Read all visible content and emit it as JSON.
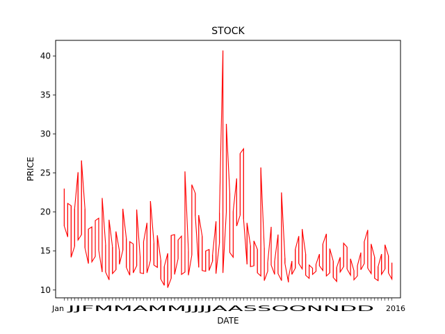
{
  "chart_data": {
    "type": "line",
    "title": "STOCK",
    "xlabel": "DATE",
    "ylabel": "PRICE",
    "xtick_first": "Jan",
    "xtick_last": "2016",
    "xtick_overlap_text": "JJFMMAMMJJJJAASSOONNDD",
    "ylim": [
      9,
      42
    ],
    "yticks": [
      10,
      15,
      20,
      25,
      30,
      35,
      40
    ],
    "xlim": [
      -2.5,
      97.5
    ],
    "n_points": 96,
    "series": [
      {
        "name": "",
        "color": "#ff0000",
        "x": [
          0,
          1,
          2,
          3,
          4,
          5,
          6,
          7,
          8,
          9,
          10,
          11,
          12,
          13,
          14,
          15,
          16,
          17,
          18,
          19,
          20,
          21,
          22,
          23,
          24,
          25,
          26,
          27,
          28,
          29,
          30,
          31,
          32,
          33,
          34,
          35,
          36,
          37,
          38,
          39,
          40,
          41,
          42,
          43,
          44,
          45,
          46,
          47,
          48,
          49,
          50,
          51,
          52,
          53,
          54,
          55,
          56,
          57,
          58,
          59,
          60,
          61,
          62,
          63,
          64,
          65,
          66,
          67,
          68,
          69,
          70,
          71,
          72,
          73,
          74,
          75,
          76,
          77,
          78,
          79,
          80,
          81,
          82,
          83,
          84,
          85,
          86,
          87,
          88,
          89,
          90,
          91,
          92,
          93,
          94,
          95
        ],
        "high": [
          23.0,
          21.1,
          20.8,
          20.4,
          25.1,
          26.6,
          20.4,
          17.8,
          18.1,
          18.9,
          19.2,
          21.8,
          15.8,
          19.0,
          15.5,
          17.5,
          15.0,
          20.4,
          16.6,
          16.2,
          15.9,
          20.3,
          14.3,
          16.2,
          18.6,
          21.4,
          16.0,
          17.0,
          13.8,
          13.0,
          14.7,
          17.0,
          17.1,
          16.4,
          16.9,
          25.2,
          15.0,
          23.5,
          22.4,
          19.6,
          16.9,
          15.0,
          15.2,
          14.5,
          18.8,
          19.9,
          40.7,
          31.3,
          22.4,
          20.1,
          24.3,
          27.5,
          28.1,
          18.6,
          15.7,
          16.3,
          15.2,
          25.7,
          15.4,
          13.5,
          18.1,
          13.7,
          17.1,
          22.5,
          14.1,
          11.6,
          13.7,
          15.2,
          16.9,
          17.8,
          14.6,
          13.2,
          12.8,
          13.3,
          14.6,
          15.9,
          17.2,
          15.3,
          13.7,
          12.9,
          14.2,
          16.0,
          15.5,
          14.0,
          12.5,
          13.1,
          14.8,
          16.2,
          17.7,
          15.9,
          14.2,
          13.0,
          14.6,
          15.8,
          14.4,
          13.5
        ],
        "low": [
          18.2,
          16.8,
          14.2,
          15.6,
          16.4,
          17.1,
          15.4,
          13.4,
          13.6,
          14.3,
          15.1,
          12.3,
          12.3,
          11.3,
          12.1,
          12.6,
          13.3,
          15.1,
          12.9,
          11.9,
          12.2,
          13.1,
          12.2,
          12.1,
          12.2,
          13.8,
          13.2,
          12.9,
          11.4,
          10.6,
          10.3,
          11.5,
          12.0,
          14.0,
          12.0,
          12.3,
          11.9,
          14.5,
          19.5,
          12.9,
          12.5,
          12.4,
          12.5,
          13.7,
          12.1,
          16.0,
          12.2,
          20.0,
          14.8,
          14.2,
          18.2,
          19.6,
          19.1,
          13.3,
          13.0,
          13.1,
          12.2,
          11.8,
          11.2,
          12.4,
          13.2,
          12.0,
          12.1,
          11.2,
          13.4,
          11.0,
          12.0,
          12.8,
          13.4,
          12.7,
          11.9,
          11.5,
          12.0,
          12.4,
          13.1,
          12.5,
          11.8,
          12.2,
          11.6,
          11.1,
          12.3,
          13.0,
          12.7,
          11.9,
          11.3,
          11.8,
          12.6,
          13.4,
          12.8,
          12.1,
          11.5,
          11.2,
          12.0,
          12.7,
          12.2,
          11.4
        ]
      }
    ],
    "legend": "none",
    "grid": false
  }
}
